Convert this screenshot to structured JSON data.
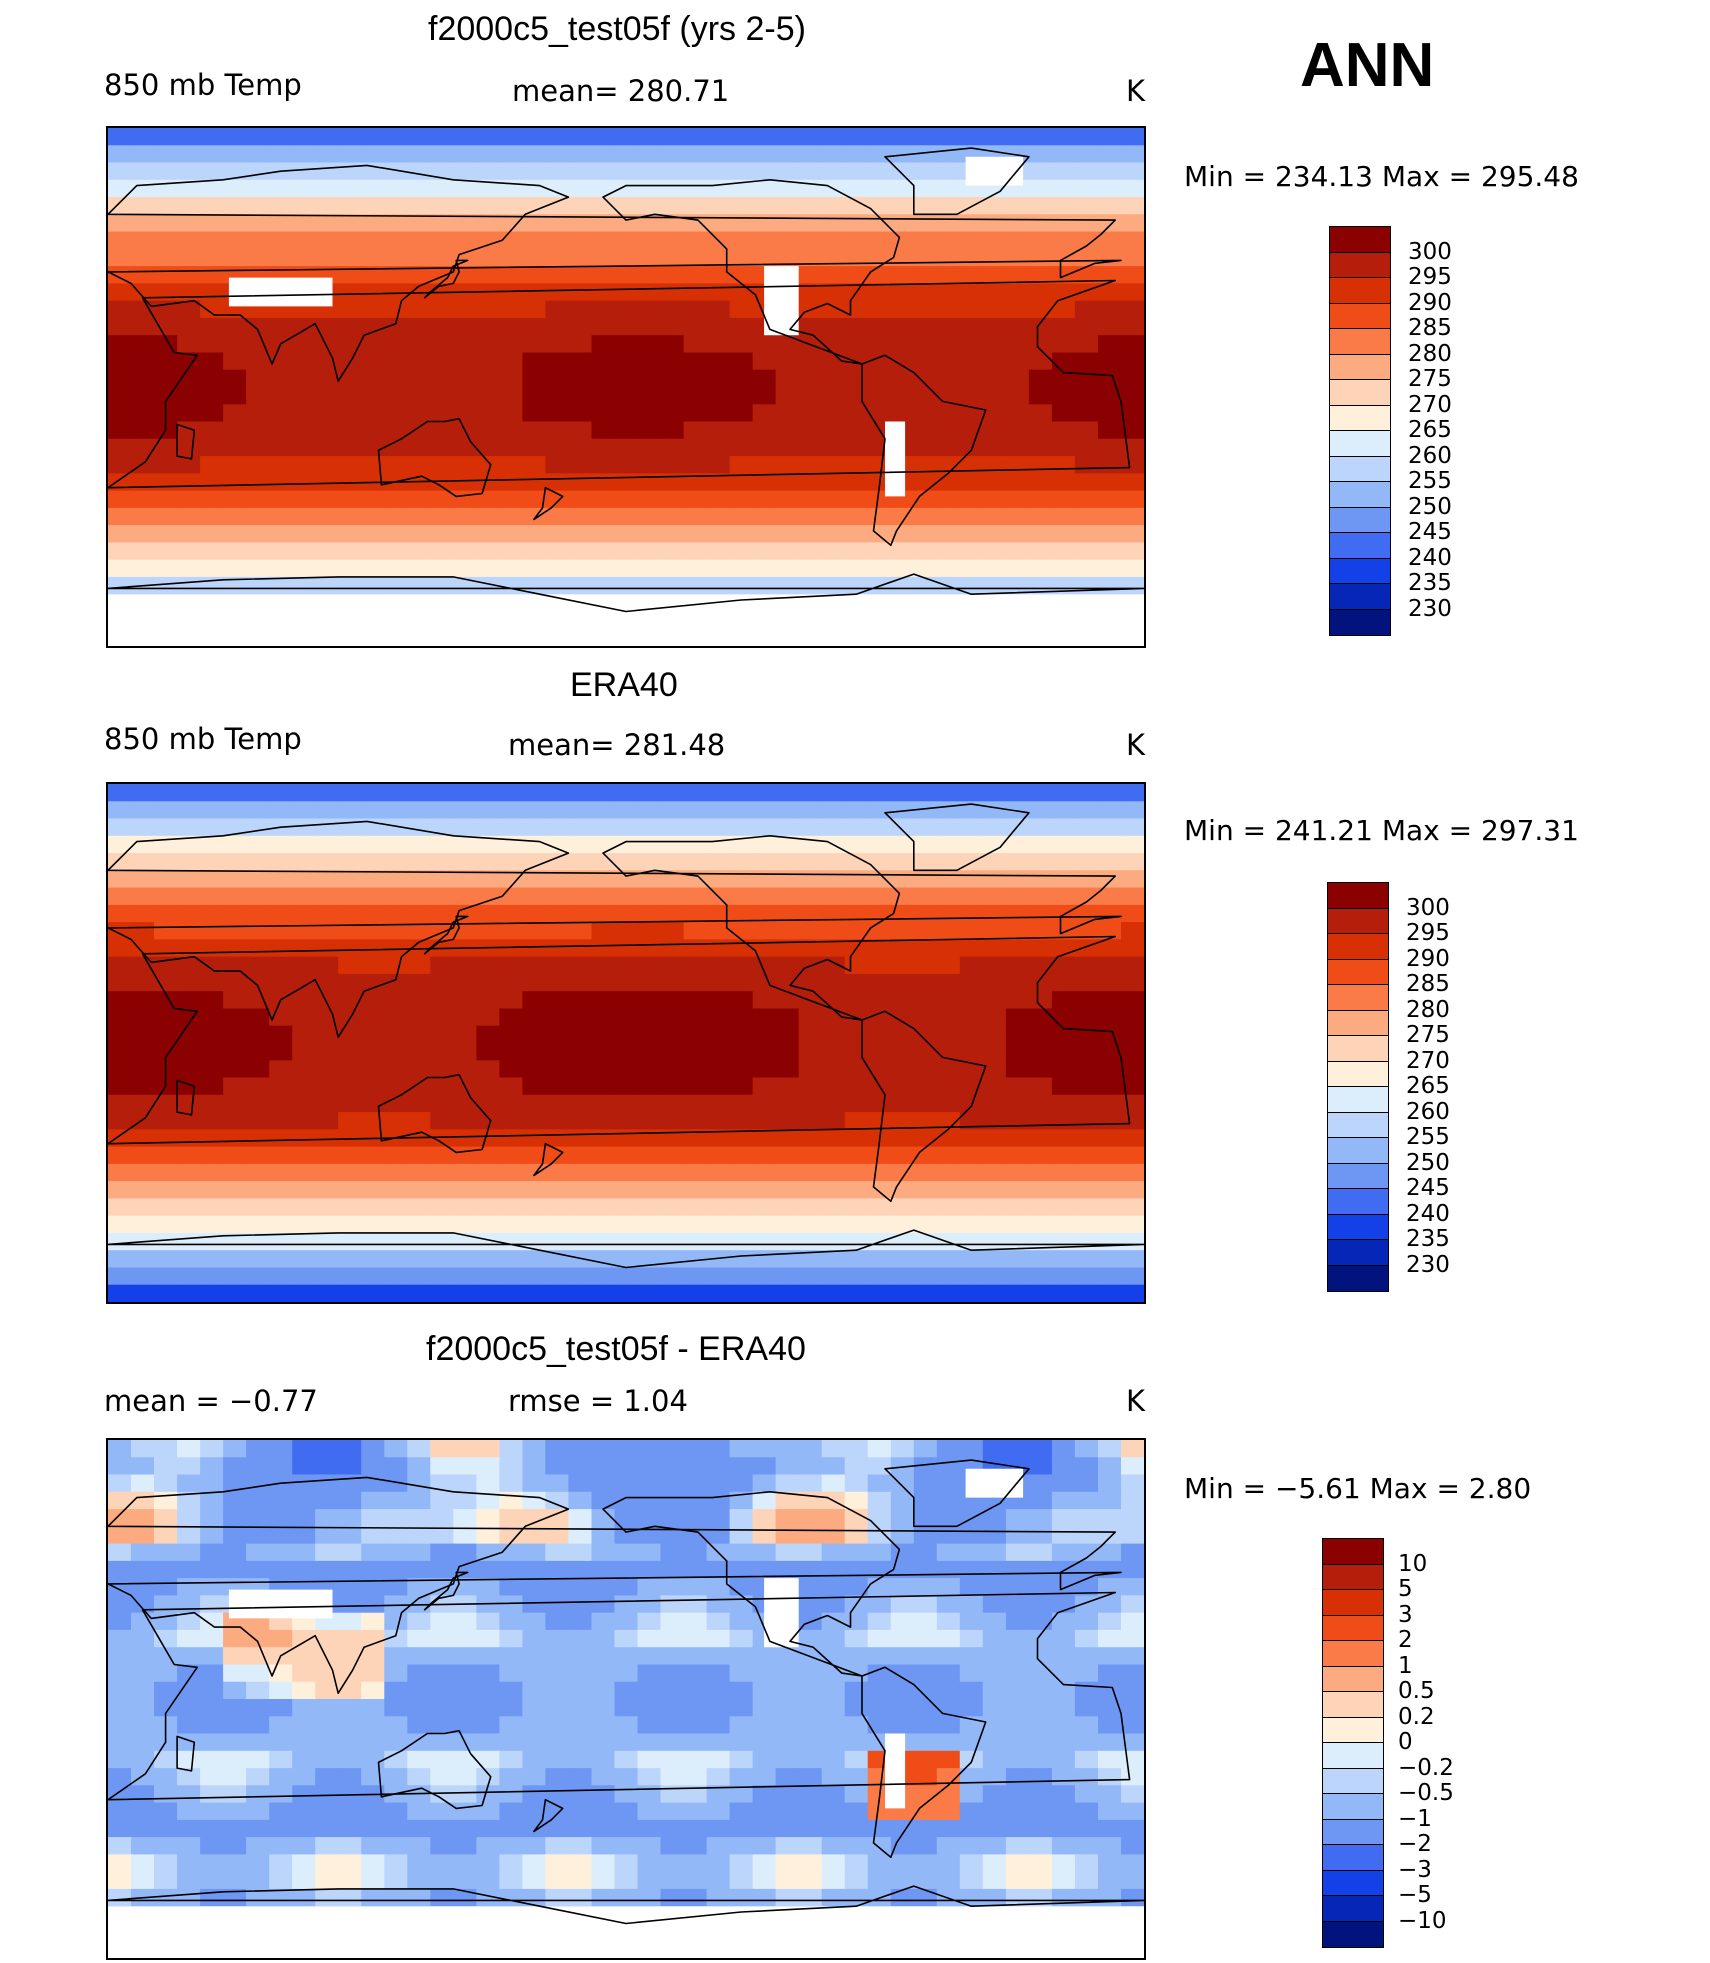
{
  "season": "ANN",
  "palette_temp": [
    "#8b0000",
    "#b41e0a",
    "#d73005",
    "#f04c18",
    "#fa7b47",
    "#fcaa80",
    "#fdd4b8",
    "#fff0dc",
    "#dceefc",
    "#bcd6fb",
    "#93b8f8",
    "#6e97f3",
    "#3f6cf0",
    "#1440e8",
    "#0626b8",
    "#03137e"
  ],
  "palette_diff": [
    "#8b0000",
    "#b41e0a",
    "#d73005",
    "#f04c18",
    "#fa7b47",
    "#fcaa80",
    "#fdd4b8",
    "#fff0dc",
    "#dceefc",
    "#bcd6fb",
    "#93b8f8",
    "#6e97f3",
    "#3f6cf0",
    "#1440e8",
    "#0626b8",
    "#03137e"
  ],
  "panels": [
    {
      "title": "f2000c5_test05f (yrs 2-5)",
      "left": "850 mb Temp",
      "center": "mean= 280.71",
      "units": "K",
      "minmax": "Min  =  234.13  Max  =  295.48",
      "levels": [
        "300",
        "295",
        "290",
        "285",
        "280",
        "275",
        "270",
        "265",
        "260",
        "255",
        "250",
        "245",
        "240",
        "235",
        "230"
      ]
    },
    {
      "title": "ERA40",
      "left": "850 mb Temp",
      "center": "mean= 281.48",
      "units": "K",
      "minmax": "Min  =  241.21  Max  =  297.31",
      "levels": [
        "300",
        "295",
        "290",
        "285",
        "280",
        "275",
        "270",
        "265",
        "260",
        "255",
        "250",
        "245",
        "240",
        "235",
        "230"
      ]
    },
    {
      "title": "f2000c5_test05f - ERA40",
      "left": "mean =   −0.77",
      "center": "rmse =     1.04",
      "units": "K",
      "minmax": "Min  =   −5.61  Max  =     2.80",
      "levels": [
        "10",
        "5",
        "3",
        "2",
        "1",
        "0.5",
        "0.2",
        "0",
        "−0.2",
        "−0.5",
        "−1",
        "−2",
        "−3",
        "−5",
        "−10"
      ]
    }
  ]
}
